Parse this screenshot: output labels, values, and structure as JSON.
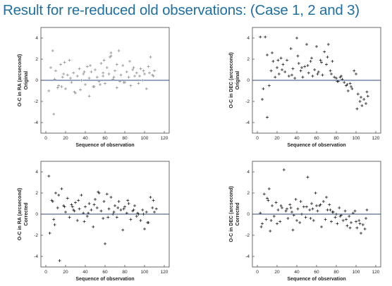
{
  "slide": {
    "title": "Result for re-reduced old observations: (Case 1, 2 and 3)",
    "title_color": "#1f6f9f"
  },
  "chart_data": [
    {
      "type": "scatter",
      "name": "ra-original",
      "xlabel": "Sequence of observation",
      "ylabel": "O-C in RA (arcsecond)",
      "ylabel2": "Original",
      "xlim": [
        -5,
        125
      ],
      "ylim": [
        -5,
        5
      ],
      "xticks": [
        0,
        20,
        40,
        60,
        80,
        100,
        120
      ],
      "yticks": [
        -4,
        -2,
        0,
        2,
        4
      ],
      "zero_line": 0,
      "zero_line_color": "#2c4a80",
      "marker": "+",
      "marker_color": "#909090",
      "series": [
        {
          "x": [
            3,
            5,
            8,
            10,
            13,
            15,
            17,
            20,
            22,
            24,
            26,
            28,
            30,
            32,
            34,
            36,
            38,
            40,
            42,
            44,
            46,
            48,
            50,
            52,
            54,
            56,
            58,
            60,
            62,
            64,
            66,
            68,
            70,
            72,
            74,
            76,
            78,
            80,
            82,
            84,
            86,
            88,
            90,
            92,
            94,
            96,
            98,
            100,
            102,
            104,
            106,
            108,
            110,
            7,
            12,
            18,
            25,
            35,
            45,
            55,
            65,
            75,
            85,
            95,
            105,
            9,
            19,
            29,
            39,
            49,
            59,
            69,
            79,
            89,
            99,
            109,
            16,
            44,
            58,
            66,
            72
          ],
          "y": [
            -1.0,
            1.2,
            -3.2,
            0.9,
            -0.5,
            1.5,
            0.3,
            -0.8,
            0.5,
            1.9,
            -0.2,
            0.7,
            -1.2,
            0.4,
            1.1,
            0.0,
            0.6,
            -0.4,
            1.3,
            0.2,
            0.8,
            -0.6,
            1.0,
            0.3,
            -0.1,
            1.6,
            0.4,
            -0.3,
            1.2,
            0.6,
            2.6,
            0.1,
            0.9,
            -0.7,
            2.8,
            0.5,
            1.4,
            -0.2,
            0.8,
            0.3,
            -0.5,
            1.0,
            0.4,
            0.7,
            -0.3,
            1.1,
            0.0,
            0.6,
            -0.8,
            1.3,
            2.2,
            0.5,
            0.9,
            2.8,
            -0.7,
            0.6,
            0.2,
            -0.9,
            1.4,
            -0.4,
            2.2,
            -0.1,
            1.8,
            0.4,
            0.7,
            0.1,
            1.7,
            -1.1,
            0.8,
            -0.6,
            1.9,
            0.3,
            -0.2,
            1.2,
            0.9,
            0.4,
            -0.6,
            -1.5,
            0.7,
            2.3,
            1.5
          ]
        }
      ]
    },
    {
      "type": "scatter",
      "name": "dec-original",
      "xlabel": "Sequence of observation",
      "ylabel": "O-C in DEC (arcsecond)",
      "ylabel2": "Original",
      "xlim": [
        -5,
        125
      ],
      "ylim": [
        -5,
        5
      ],
      "xticks": [
        0,
        20,
        40,
        60,
        80,
        100,
        120
      ],
      "yticks": [
        -4,
        -2,
        0,
        2,
        4
      ],
      "zero_line": 0,
      "zero_line_color": "#2c4a80",
      "marker": "+",
      "marker_color": "#222222",
      "series": [
        {
          "x": [
            3,
            5,
            8,
            10,
            12,
            14,
            16,
            18,
            20,
            22,
            24,
            26,
            28,
            30,
            32,
            34,
            36,
            38,
            40,
            42,
            44,
            46,
            48,
            50,
            52,
            54,
            56,
            58,
            60,
            62,
            64,
            66,
            68,
            70,
            72,
            74,
            76,
            78,
            80,
            82,
            84,
            86,
            88,
            90,
            92,
            94,
            96,
            98,
            100,
            102,
            104,
            106,
            108,
            110,
            112,
            6,
            15,
            25,
            35,
            45,
            55,
            65,
            75,
            85,
            95,
            105,
            111,
            10,
            21,
            41,
            51,
            61,
            71,
            81,
            91,
            101
          ],
          "y": [
            4.1,
            -1.8,
            4.1,
            -3.5,
            -0.5,
            0.9,
            1.8,
            0.3,
            1.2,
            0.6,
            2.1,
            1.5,
            0.8,
            1.9,
            0.4,
            3.0,
            1.1,
            0.2,
            4.0,
            1.6,
            0.9,
            0.3,
            1.3,
            3.4,
            0.7,
            1.8,
            0.4,
            1.0,
            3.2,
            0.8,
            1.9,
            0.5,
            2.7,
            1.5,
            3.4,
            0.9,
            1.8,
            0.3,
            0.2,
            -0.1,
            0.3,
            0.1,
            -0.2,
            -0.5,
            -1.0,
            -0.3,
            -0.8,
            0.9,
            0.6,
            -1.3,
            -2.0,
            -2.4,
            -1.8,
            -2.2,
            -1.5,
            -0.8,
            2.6,
            1.0,
            0.5,
            1.2,
            2.1,
            1.7,
            0.6,
            0.4,
            -0.6,
            -1.6,
            -1.1,
            2.4,
            1.9,
            2.3,
            1.4,
            0.6,
            2.2,
            -0.1,
            -0.4,
            -2.7
          ]
        }
      ]
    },
    {
      "type": "scatter",
      "name": "ra-corrected",
      "xlabel": "Sequence of observation",
      "ylabel": "O-C in RA (arcsecond)",
      "ylabel2": "Corrected",
      "xlim": [
        -5,
        125
      ],
      "ylim": [
        -5,
        5
      ],
      "xticks": [
        0,
        20,
        40,
        60,
        80,
        100,
        120
      ],
      "yticks": [
        -4,
        -2,
        0,
        2,
        4
      ],
      "zero_line": 0,
      "zero_line_color": "#2c4a80",
      "marker": "+",
      "marker_color": "#222222",
      "series": [
        {
          "x": [
            3,
            4,
            6,
            8,
            10,
            12,
            14,
            16,
            18,
            20,
            22,
            24,
            26,
            28,
            30,
            32,
            34,
            36,
            38,
            40,
            42,
            44,
            46,
            48,
            50,
            52,
            54,
            56,
            58,
            60,
            62,
            64,
            66,
            68,
            70,
            72,
            74,
            76,
            78,
            80,
            82,
            84,
            86,
            88,
            90,
            92,
            94,
            96,
            98,
            100,
            102,
            104,
            106,
            108,
            110,
            112,
            7,
            13,
            27,
            33,
            43,
            53,
            63,
            73,
            83,
            93,
            103,
            9,
            19,
            29,
            39,
            49,
            59,
            69,
            79,
            89,
            99,
            109
          ],
          "y": [
            3.6,
            -1.8,
            1.3,
            -0.5,
            2.0,
            0.6,
            -4.4,
            2.4,
            0.8,
            0.2,
            1.5,
            -0.3,
            0.9,
            0.4,
            1.1,
            -0.6,
            0.5,
            1.8,
            0.1,
            0.7,
            -0.2,
            1.0,
            0.4,
            -1.2,
            1.4,
            0.6,
            2.0,
            0.3,
            -0.4,
            -2.8,
            1.9,
            0.5,
            1.6,
            0.0,
            0.8,
            -0.3,
            1.2,
            0.4,
            -1.5,
            0.7,
            0.1,
            1.0,
            -0.5,
            0.3,
            0.8,
            -0.2,
            0.0,
            -0.6,
            0.4,
            -1.4,
            0.2,
            -0.8,
            1.6,
            0.6,
            0.2,
            0.5,
            1.2,
            1.8,
            0.7,
            1.3,
            0.1,
            2.1,
            -0.3,
            0.6,
            1.3,
            0.1,
            -0.8,
            -1.0,
            0.7,
            0.3,
            -0.7,
            0.9,
            1.2,
            0.2,
            0.5,
            0.4,
            0.0,
            1.3
          ]
        }
      ]
    },
    {
      "type": "scatter",
      "name": "dec-corrected",
      "xlabel": "Sequence of observation",
      "ylabel": "O-C in DEC (arcsecond)",
      "ylabel2": "Corrected",
      "xlim": [
        -5,
        125
      ],
      "ylim": [
        -5,
        5
      ],
      "xticks": [
        0,
        20,
        40,
        60,
        80,
        100,
        120
      ],
      "yticks": [
        -4,
        -2,
        0,
        2,
        4
      ],
      "zero_line": 0,
      "zero_line_color": "#2c4a80",
      "marker": "+",
      "marker_color": "#222222",
      "series": [
        {
          "x": [
            3,
            5,
            7,
            9,
            11,
            13,
            15,
            17,
            19,
            21,
            23,
            25,
            27,
            29,
            31,
            33,
            35,
            37,
            39,
            41,
            43,
            45,
            47,
            49,
            51,
            53,
            55,
            57,
            59,
            61,
            63,
            65,
            67,
            69,
            71,
            73,
            75,
            77,
            79,
            81,
            83,
            85,
            87,
            89,
            91,
            93,
            95,
            97,
            99,
            101,
            103,
            105,
            107,
            109,
            111,
            4,
            14,
            24,
            34,
            44,
            54,
            64,
            74,
            84,
            94,
            104,
            110,
            10,
            20,
            30,
            40,
            50,
            60,
            70,
            80,
            90,
            100,
            12,
            36,
            56,
            76
          ],
          "y": [
            0.1,
            -0.9,
            1.9,
            -0.5,
            1.3,
            -1.6,
            0.8,
            -0.2,
            1.1,
            0.4,
            -0.7,
            0.6,
            4.2,
            0.3,
            -0.4,
            0.9,
            0.2,
            -0.1,
            1.4,
            0.5,
            -0.8,
            0.0,
            0.7,
            -0.3,
            3.5,
            0.4,
            1.0,
            -0.6,
            2.0,
            0.3,
            0.8,
            -1.2,
            1.2,
            -0.5,
            0.4,
            0.9,
            -0.7,
            0.2,
            -0.3,
            -0.9,
            0.6,
            -0.1,
            -0.6,
            0.3,
            -1.1,
            -0.2,
            -0.8,
            0.1,
            0.3,
            -1.3,
            -0.6,
            -1.8,
            -1.0,
            -1.4,
            0.4,
            -1.2,
            -0.6,
            0.8,
            0.6,
            1.2,
            -0.4,
            0.9,
            0.4,
            -0.2,
            -1.3,
            -0.9,
            -0.4,
            1.5,
            -0.9,
            0.5,
            -0.6,
            0.7,
            0.8,
            1.6,
            0.0,
            -0.5,
            -0.7,
            2.4,
            -1.5,
            0.5,
            0.2
          ]
        }
      ]
    }
  ]
}
